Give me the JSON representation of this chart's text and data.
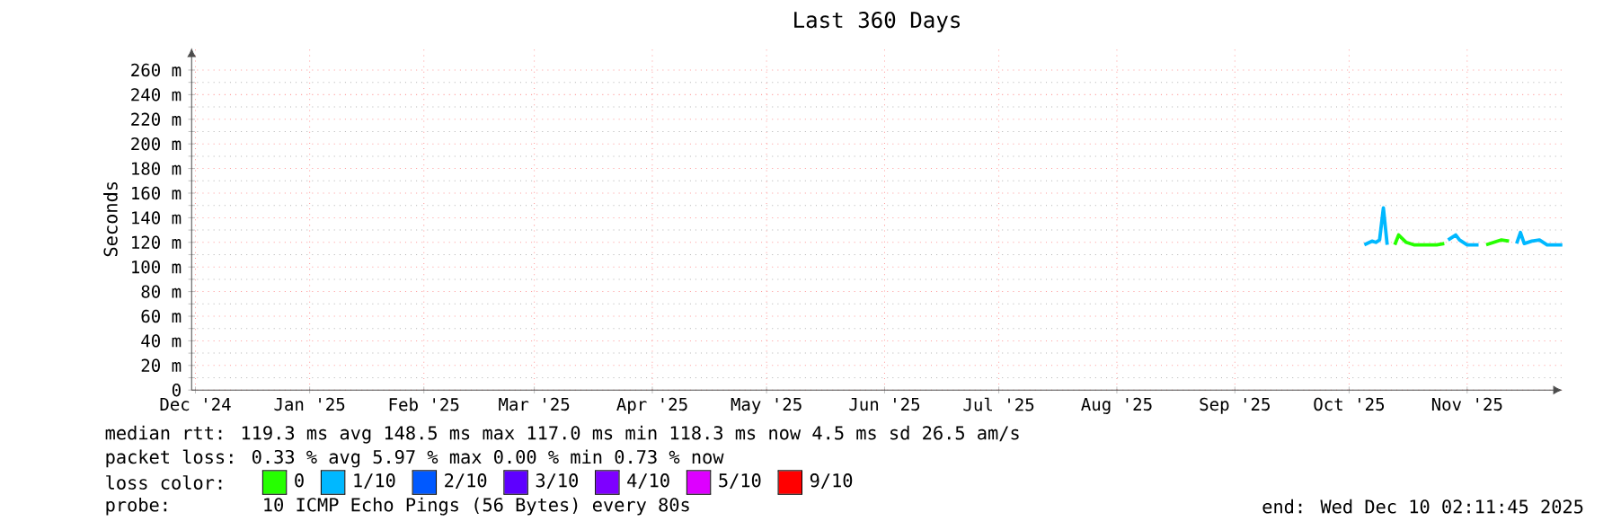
{
  "chart_data": {
    "type": "line",
    "title": "Last 360 Days",
    "ylabel": "Seconds",
    "legend_title": "loss color:",
    "x": [
      "2025-10-19",
      "2025-10-21",
      "2025-10-22",
      "2025-10-23",
      "2025-10-24",
      "2025-10-25",
      "2025-10-27",
      "2025-10-28",
      "2025-10-30",
      "2025-11-01",
      "2025-11-04",
      "2025-11-07",
      "2025-11-09",
      "2025-11-10",
      "2025-11-11",
      "2025-11-12",
      "2025-11-13",
      "2025-11-15",
      "2025-11-18",
      "2025-11-20",
      "2025-11-22",
      "2025-11-24",
      "2025-11-26",
      "2025-11-28",
      "2025-11-29",
      "2025-11-30",
      "2025-12-02",
      "2025-12-04",
      "2025-12-06",
      "2025-12-08",
      "2025-12-10"
    ],
    "series": [
      {
        "name": "0",
        "color": "#26ff00",
        "values": [
          null,
          null,
          null,
          null,
          null,
          null,
          118,
          126,
          120,
          118,
          118,
          118,
          119,
          null,
          null,
          null,
          null,
          null,
          null,
          118,
          120,
          122,
          121,
          null,
          null,
          null,
          null,
          null,
          null,
          null,
          null
        ]
      },
      {
        "name": "1/10",
        "color": "#00b8ff",
        "values": [
          118,
          121,
          120,
          122,
          148,
          118,
          null,
          null,
          null,
          null,
          null,
          null,
          null,
          122,
          124,
          126,
          122,
          118,
          118,
          null,
          null,
          null,
          null,
          119,
          128,
          119,
          121,
          122,
          118,
          118,
          118
        ]
      },
      {
        "name": "2/10",
        "color": "#0059ff",
        "values": [
          null,
          null,
          null,
          null,
          null,
          null,
          null,
          null,
          null,
          null,
          null,
          null,
          null,
          null,
          null,
          null,
          null,
          null,
          null,
          null,
          null,
          null,
          null,
          null,
          null,
          null,
          null,
          null,
          null,
          null,
          null
        ]
      },
      {
        "name": "3/10",
        "color": "#5e00ff",
        "values": [
          null,
          null,
          null,
          null,
          null,
          null,
          null,
          null,
          null,
          null,
          null,
          null,
          null,
          null,
          null,
          null,
          null,
          null,
          null,
          null,
          null,
          null,
          null,
          null,
          null,
          null,
          null,
          null,
          null,
          null,
          null
        ]
      },
      {
        "name": "4/10",
        "color": "#7e00ff",
        "values": [
          null,
          null,
          null,
          null,
          null,
          null,
          null,
          null,
          null,
          null,
          null,
          null,
          null,
          null,
          null,
          null,
          null,
          null,
          null,
          null,
          null,
          null,
          null,
          null,
          null,
          null,
          null,
          null,
          null,
          null,
          null
        ]
      },
      {
        "name": "5/10",
        "color": "#dd00ff",
        "values": [
          null,
          null,
          null,
          null,
          null,
          null,
          null,
          null,
          null,
          null,
          null,
          null,
          null,
          null,
          null,
          null,
          null,
          null,
          null,
          null,
          null,
          null,
          null,
          null,
          null,
          null,
          null,
          null,
          null,
          null,
          null
        ]
      },
      {
        "name": "9/10",
        "color": "#ff0000",
        "values": [
          null,
          null,
          null,
          null,
          null,
          null,
          null,
          null,
          null,
          null,
          null,
          null,
          null,
          null,
          null,
          null,
          null,
          null,
          null,
          null,
          null,
          null,
          null,
          null,
          null,
          null,
          null,
          null,
          null,
          null,
          null
        ]
      }
    ],
    "xlim": [
      "2024-12-15",
      "2025-12-10"
    ],
    "xticks": [
      {
        "value": "2024-12-16",
        "label": "Dec '24"
      },
      {
        "value": "2025-01-15",
        "label": "Jan '25"
      },
      {
        "value": "2025-02-14",
        "label": "Feb '25"
      },
      {
        "value": "2025-03-15",
        "label": "Mar '25"
      },
      {
        "value": "2025-04-15",
        "label": "Apr '25"
      },
      {
        "value": "2025-05-15",
        "label": "May '25"
      },
      {
        "value": "2025-06-15",
        "label": "Jun '25"
      },
      {
        "value": "2025-07-15",
        "label": "Jul '25"
      },
      {
        "value": "2025-08-15",
        "label": "Aug '25"
      },
      {
        "value": "2025-09-15",
        "label": "Sep '25"
      },
      {
        "value": "2025-10-15",
        "label": "Oct '25"
      },
      {
        "value": "2025-11-15",
        "label": "Nov '25"
      }
    ],
    "ylim": [
      0,
      278
    ],
    "yticks": [
      0,
      {
        "value": 20,
        "label": "20 m"
      },
      {
        "value": 40,
        "label": "40 m"
      },
      {
        "value": 60,
        "label": "60 m"
      },
      {
        "value": 80,
        "label": "80 m"
      },
      {
        "value": 100,
        "label": "100 m"
      },
      {
        "value": 120,
        "label": "120 m"
      },
      {
        "value": 140,
        "label": "140 m"
      },
      {
        "value": 160,
        "label": "160 m"
      },
      {
        "value": 180,
        "label": "180 m"
      },
      {
        "value": 200,
        "label": "200 m"
      },
      {
        "value": 220,
        "label": "220 m"
      },
      {
        "value": 240,
        "label": "240 m"
      },
      {
        "value": 260,
        "label": "260 m"
      }
    ],
    "grid": true,
    "legend": "bottom left",
    "line_style": "solid",
    "annotations": [
      "median rtt:  119.3 ms avg  148.5 ms max  117.0 ms min  118.3 ms now  4.5 ms sd  26.5   am/s",
      "packet loss: 0.33 % avg  5.97 % max  0.00 % min  0.73 % now",
      "probe:",
      "10 ICMP Echo Pings (56 Bytes) every 80s",
      "end: Wed Dec 10 02:11:45 2025"
    ]
  }
}
